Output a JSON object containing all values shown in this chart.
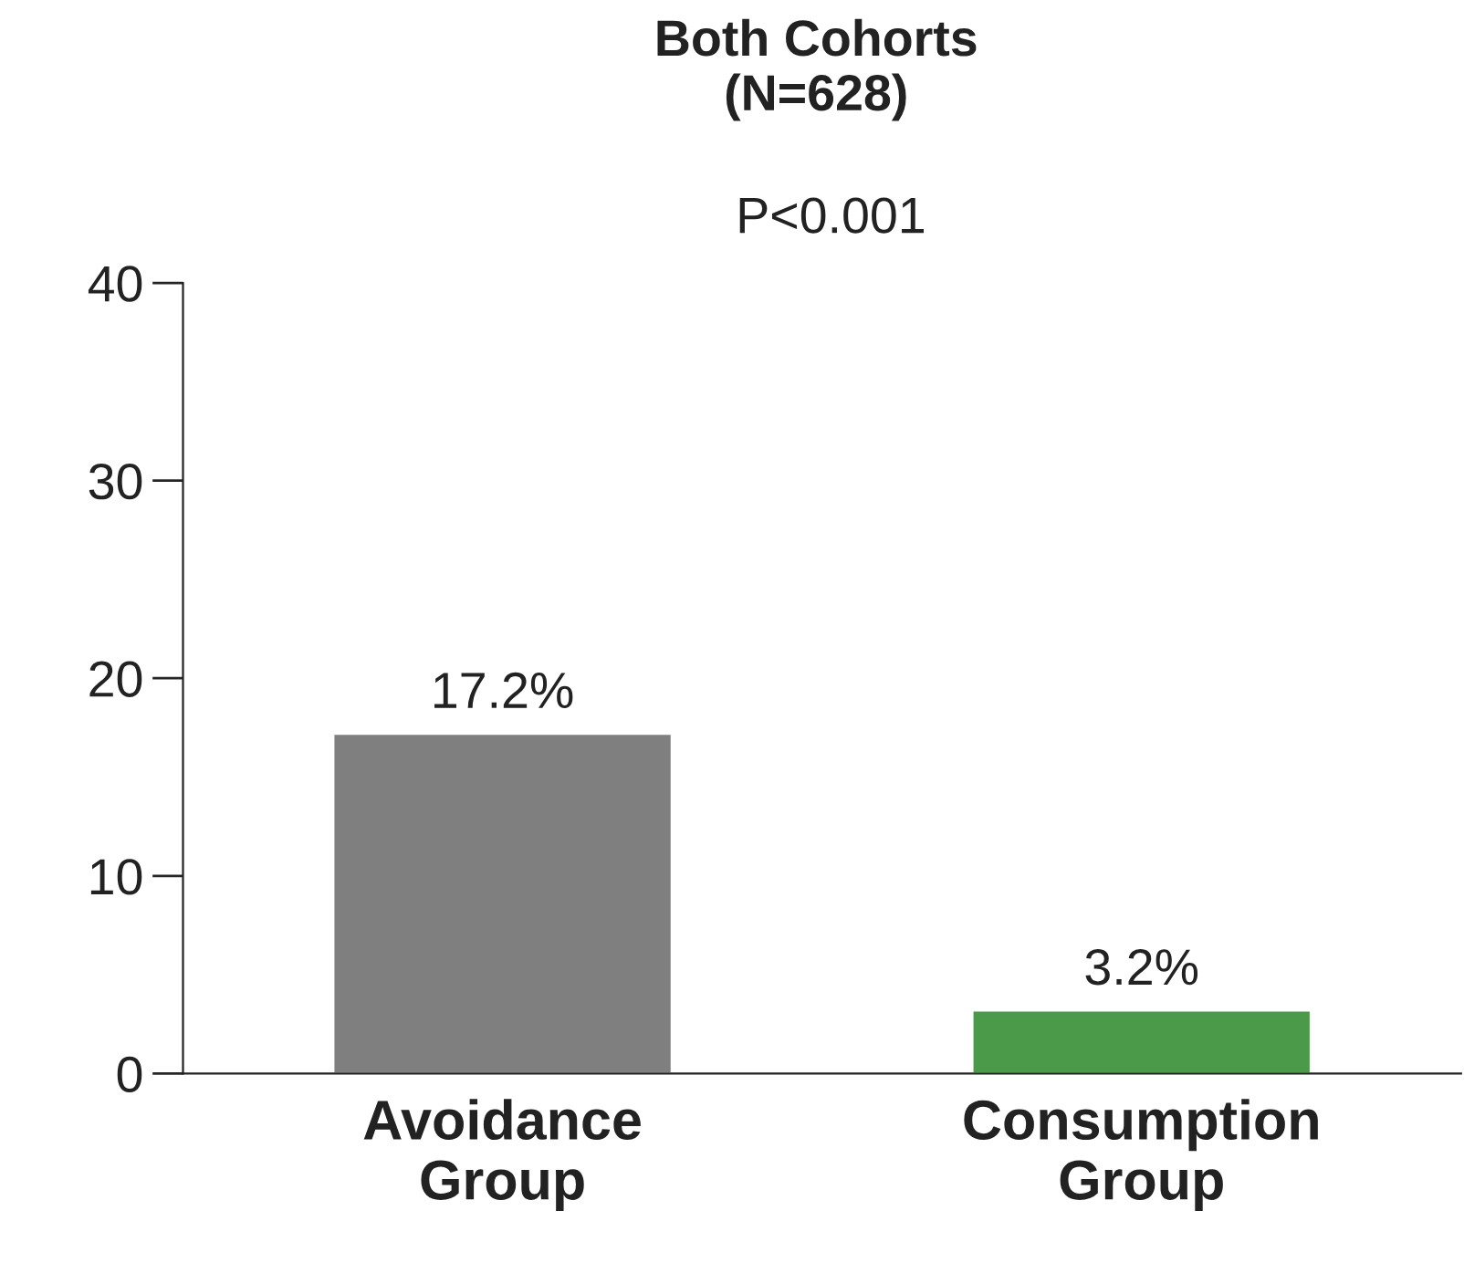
{
  "chart_data": {
    "type": "bar",
    "title": "Both Cohorts\n(N=628)",
    "categories": [
      "Avoidance\nGroup",
      "Consumption\nGroup"
    ],
    "values": [
      17.2,
      3.2
    ],
    "colors": [
      "#7f7f80",
      "#4a9a4a"
    ],
    "value_labels": [
      "17.2%",
      "3.2%"
    ],
    "annotations": [
      "P<0.001"
    ],
    "ylim": [
      0,
      40
    ],
    "yticks": [
      0,
      10,
      20,
      30,
      40
    ],
    "grid": false,
    "legend": false
  }
}
